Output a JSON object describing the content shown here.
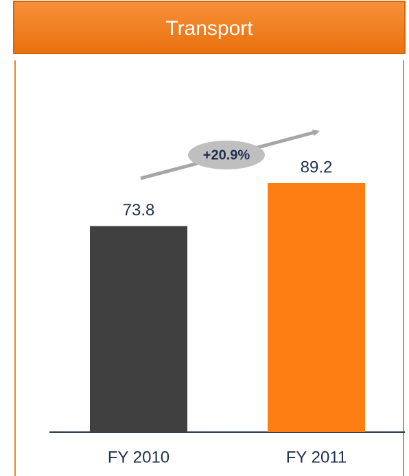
{
  "chart_data": {
    "type": "bar",
    "title": "Transport",
    "categories": [
      "FY 2010",
      "FY 2011"
    ],
    "values": [
      73.8,
      89.2
    ],
    "colors": [
      "#404040",
      "#fd7f14"
    ],
    "ylim": [
      0,
      100
    ],
    "annotation": "+20.9%"
  }
}
